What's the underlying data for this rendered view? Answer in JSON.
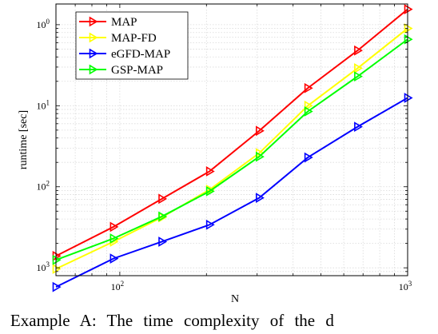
{
  "chart_data": {
    "type": "line",
    "xlabel": "N",
    "ylabel": "runtime [sec]",
    "xscale": "log",
    "yscale": "log",
    "xlim": [
      60,
      1000
    ],
    "ylim": [
      0.0008,
      1.8
    ],
    "grid": true,
    "legend_position": "top-left",
    "x": [
      60,
      95,
      140,
      205,
      305,
      450,
      670,
      1000
    ],
    "x_ticks": [
      {
        "value": 100,
        "base": "10",
        "exp": "2"
      },
      {
        "value": 1000,
        "base": "10",
        "exp": "3"
      }
    ],
    "y_ticks": [
      {
        "value": 1,
        "base": "10",
        "exp": "0"
      },
      {
        "value": 0.1,
        "base": "10",
        "exp": "1"
      },
      {
        "value": 0.01,
        "base": "10",
        "exp": "2"
      },
      {
        "value": 0.001,
        "base": "10",
        "exp": "3"
      }
    ],
    "series": [
      {
        "name": "MAP",
        "color": "#ff0000",
        "values": [
          0.0014,
          0.0032,
          0.0071,
          0.0155,
          0.049,
          0.165,
          0.48,
          1.55
        ]
      },
      {
        "name": "MAP-FD",
        "color": "#ffff00",
        "values": [
          0.00097,
          0.0021,
          0.0042,
          0.0092,
          0.026,
          0.1,
          0.29,
          0.9
        ]
      },
      {
        "name": "eGFD-MAP",
        "color": "#0000ff",
        "values": [
          0.00058,
          0.0013,
          0.0021,
          0.0034,
          0.0073,
          0.023,
          0.055,
          0.125
        ]
      },
      {
        "name": "GSP-MAP",
        "color": "#00ff00",
        "values": [
          0.00125,
          0.0023,
          0.0043,
          0.0088,
          0.0235,
          0.085,
          0.23,
          0.66
        ]
      }
    ]
  },
  "caption": "t: Example A: The time complexity of the d"
}
